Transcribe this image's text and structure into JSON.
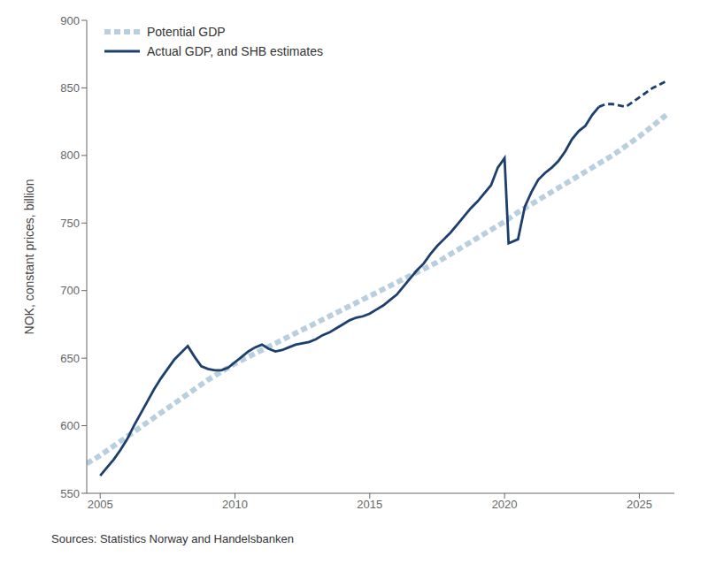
{
  "chart_data": {
    "type": "line",
    "y_label": "NOK, constant prices, billion",
    "annotation": "Sources: Statistics Norway and Handelsbanken",
    "xlim": [
      2004.5,
      2026.3
    ],
    "ylim": [
      550,
      900
    ],
    "xticks": [
      2005,
      2010,
      2015,
      2020,
      2025
    ],
    "yticks": [
      550,
      600,
      650,
      700,
      750,
      800,
      850,
      900
    ],
    "grid": false,
    "legend": "upper left",
    "series": [
      {
        "name": "Potential GDP",
        "color": "#b8cfe0",
        "line_style": "dashed",
        "x": [
          2004.5,
          2005.0,
          2005.5,
          2006.0,
          2006.5,
          2007.0,
          2007.5,
          2008.0,
          2008.5,
          2009.0,
          2009.5,
          2010.0,
          2010.5,
          2011.0,
          2011.5,
          2012.0,
          2012.5,
          2013.0,
          2013.5,
          2014.0,
          2014.5,
          2015.0,
          2015.5,
          2016.0,
          2016.5,
          2017.0,
          2017.5,
          2018.0,
          2018.5,
          2019.0,
          2019.5,
          2020.0,
          2020.5,
          2021.0,
          2021.5,
          2022.0,
          2022.5,
          2023.0,
          2023.5,
          2024.0,
          2024.5,
          2025.0,
          2025.5,
          2026.0
        ],
        "values": [
          572,
          578,
          585,
          592,
          599,
          606,
          613,
          620,
          627,
          634,
          640,
          646,
          651,
          656,
          661,
          666,
          671,
          676,
          681,
          686,
          691,
          696,
          701,
          706,
          711,
          716,
          721,
          727,
          733,
          739,
          745,
          751,
          758,
          764,
          770,
          776,
          782,
          788,
          794,
          800,
          807,
          814,
          822,
          830
        ]
      },
      {
        "name": "Actual GDP, and SHB estimates",
        "color": "#1c3f6e",
        "line_style": "solid",
        "x": [
          2005.0,
          2005.25,
          2005.5,
          2005.75,
          2006.0,
          2006.25,
          2006.5,
          2006.75,
          2007.0,
          2007.25,
          2007.5,
          2007.75,
          2008.0,
          2008.25,
          2008.5,
          2008.75,
          2009.0,
          2009.25,
          2009.5,
          2009.75,
          2010.0,
          2010.25,
          2010.5,
          2010.75,
          2011.0,
          2011.25,
          2011.5,
          2011.75,
          2012.0,
          2012.25,
          2012.5,
          2012.75,
          2013.0,
          2013.25,
          2013.5,
          2013.75,
          2014.0,
          2014.25,
          2014.5,
          2014.75,
          2015.0,
          2015.25,
          2015.5,
          2015.75,
          2016.0,
          2016.25,
          2016.5,
          2016.75,
          2017.0,
          2017.25,
          2017.5,
          2017.75,
          2018.0,
          2018.25,
          2018.5,
          2018.75,
          2019.0,
          2019.25,
          2019.5,
          2019.75,
          2020.0,
          2020.15,
          2020.5,
          2020.75,
          2021.0,
          2021.25,
          2021.5,
          2021.75,
          2022.0,
          2022.25,
          2022.5,
          2022.75,
          2023.0,
          2023.25,
          2023.5
        ],
        "values": [
          563,
          569,
          575,
          582,
          590,
          600,
          609,
          618,
          627,
          635,
          642,
          649,
          654,
          659,
          651,
          644,
          642,
          641,
          641,
          643,
          647,
          651,
          655,
          658,
          660,
          657,
          655,
          656,
          658,
          660,
          661,
          662,
          664,
          667,
          669,
          672,
          675,
          678,
          680,
          681,
          683,
          686,
          689,
          693,
          697,
          703,
          709,
          715,
          720,
          727,
          733,
          738,
          743,
          749,
          755,
          761,
          766,
          772,
          778,
          791,
          798,
          735,
          738,
          762,
          773,
          782,
          787,
          791,
          796,
          803,
          812,
          818,
          822,
          830,
          836
        ]
      },
      {
        "color": "#1c3f6e",
        "line_style": "dashed",
        "x": [
          2023.5,
          2023.75,
          2024.0,
          2024.5,
          2025.0,
          2025.5,
          2026.0
        ],
        "values": [
          836,
          838,
          838,
          836,
          843,
          850,
          855
        ]
      }
    ]
  }
}
